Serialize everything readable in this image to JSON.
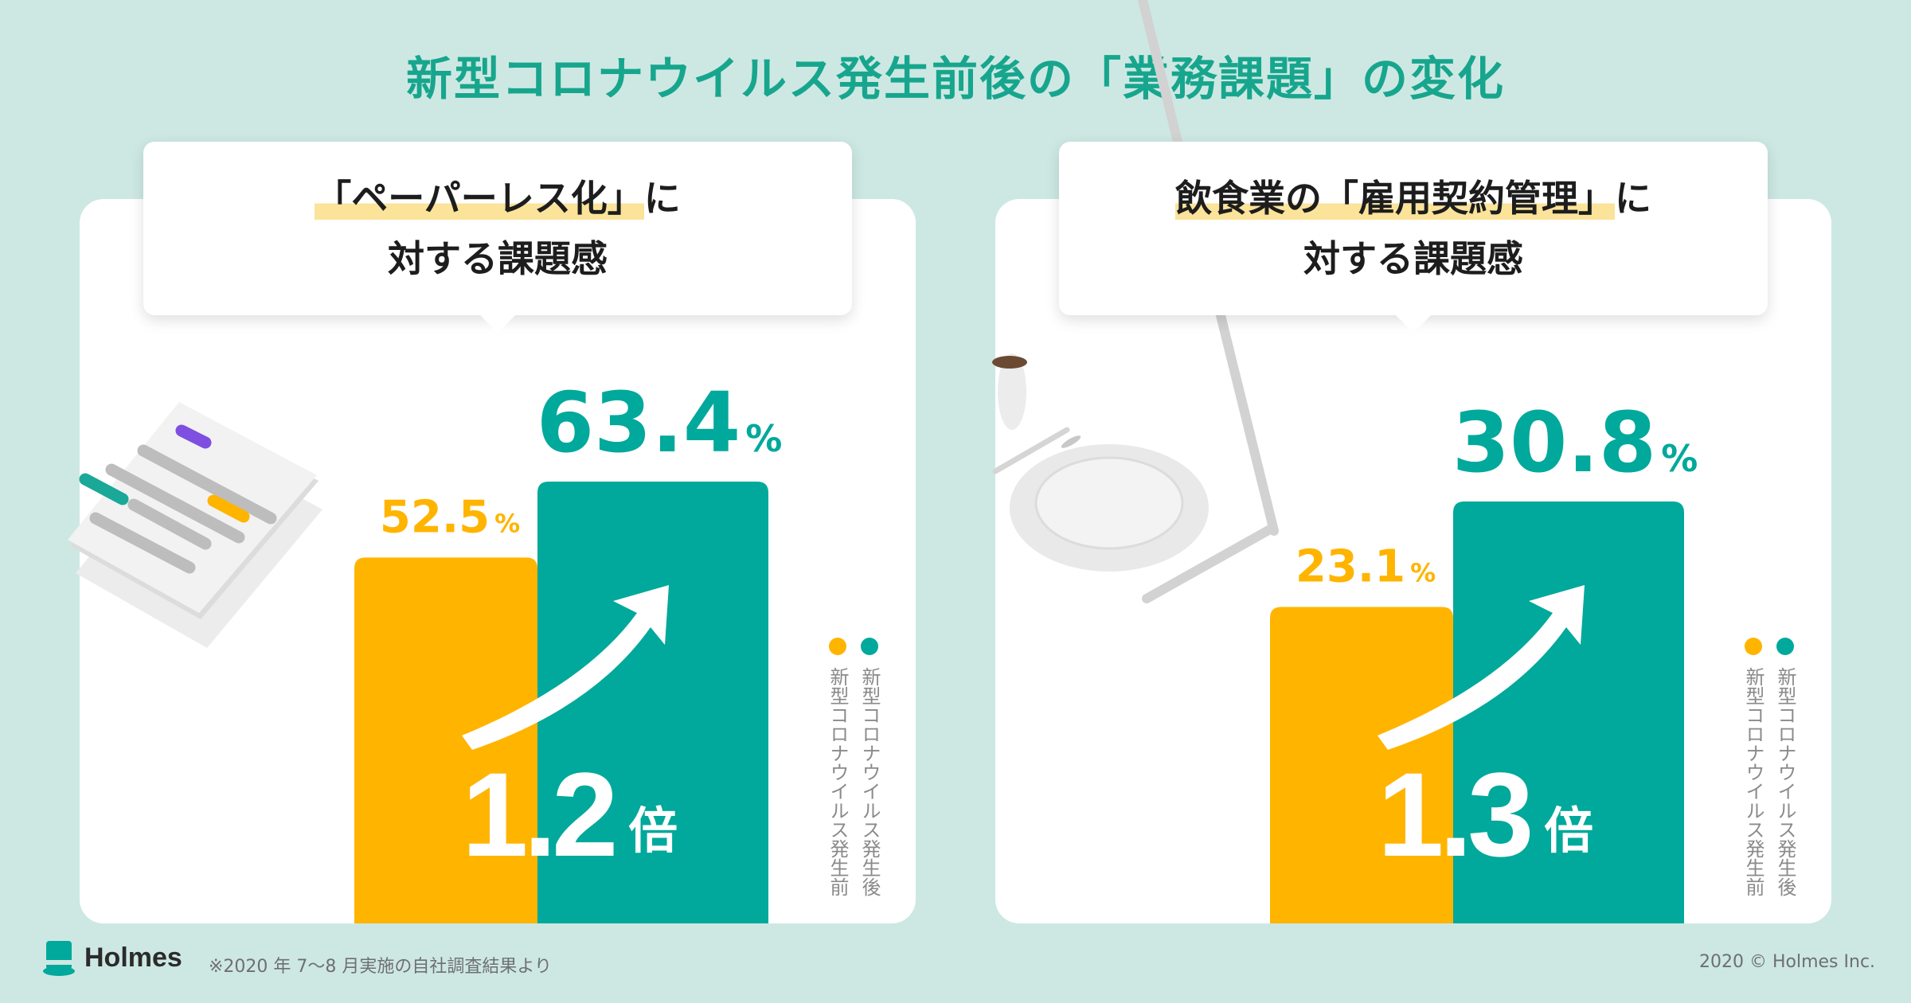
{
  "title": "新型コロナウイルス発生前後の「業務課題」の変化",
  "colors": {
    "before": "#ffb400",
    "after": "#00a99b",
    "title": "#17a68d",
    "background": "#cde8e3"
  },
  "panels": [
    {
      "heading_quoted": "「ペーパーレス化」",
      "heading_suffix": "に",
      "heading_line2": "対する課題感",
      "multiplier": "1.2",
      "multiplier_unit": "倍"
    },
    {
      "heading_prefix": "飲食業の",
      "heading_quoted": "「雇用契約管理」",
      "heading_suffix": "に",
      "heading_line2": "対する課題感",
      "multiplier": "1.3",
      "multiplier_unit": "倍"
    }
  ],
  "chart_data": [
    {
      "type": "bar",
      "title": "「ペーパーレス化」に対する課題感",
      "categories": [
        "新型コロナウイルス発生前",
        "新型コロナウイルス発生後"
      ],
      "values": [
        52.5,
        63.4
      ],
      "value_labels": [
        "52.5",
        "63.4"
      ],
      "unit": "%",
      "legend": [
        "新型コロナウイルス発生前",
        "新型コロナウイルス発生後"
      ],
      "legend_position": "right"
    },
    {
      "type": "bar",
      "title": "飲食業の「雇用契約管理」に対する課題感",
      "categories": [
        "新型コロナウイルス発生前",
        "新型コロナウイルス発生後"
      ],
      "values": [
        23.1,
        30.8
      ],
      "value_labels": [
        "23.1",
        "30.8"
      ],
      "unit": "%",
      "legend": [
        "新型コロナウイルス発生前",
        "新型コロナウイルス発生後"
      ],
      "legend_position": "right"
    }
  ],
  "footer": {
    "logo_text": "Holmes",
    "logo_icon": "top-hat-icon",
    "note": "※2020 年 7〜8 月実施の自社調査結果より",
    "copyright": "2020 © Holmes Inc."
  }
}
